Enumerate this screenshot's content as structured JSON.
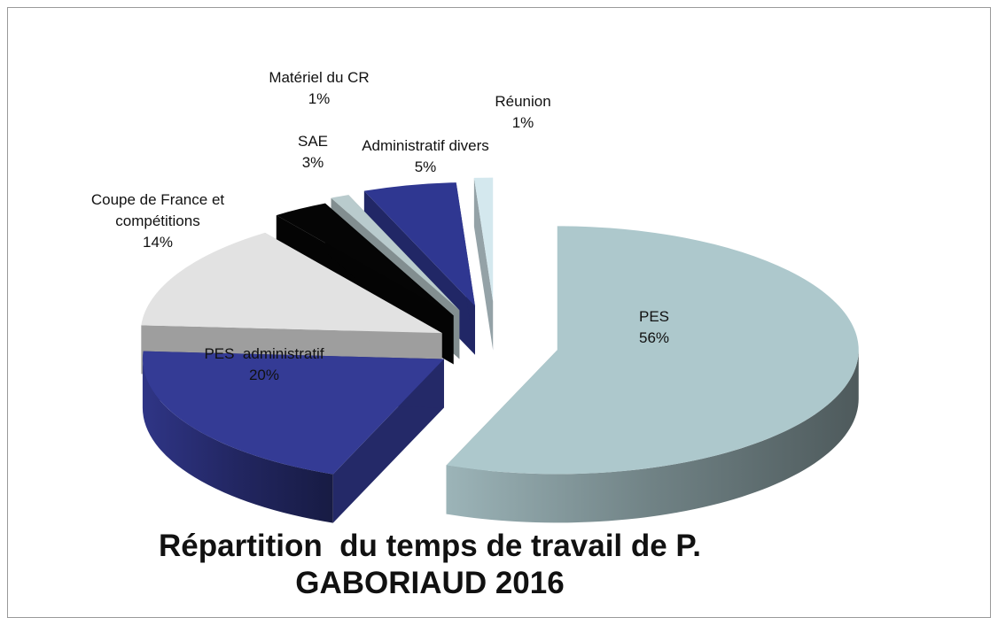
{
  "chart_data": {
    "type": "pie3d",
    "title": "Répartition  du temps de travail de P. GABORIAUD 2016",
    "categories": [
      "PES",
      "PES  administratif",
      "Coupe de France et compétitions",
      "SAE",
      "Matériel du CR",
      "Administratif divers",
      "Réunion"
    ],
    "values": [
      56,
      20,
      14,
      3,
      1,
      5,
      1
    ],
    "value_labels": [
      "56%",
      "20%",
      "14%",
      "3%",
      "1%",
      "5%",
      "1%"
    ],
    "colors": [
      "#adc8cc",
      "#343b95",
      "#e2e2e2",
      "#050505",
      "#b9cbcd",
      "#2f3791",
      "#d4e8ee"
    ]
  }
}
